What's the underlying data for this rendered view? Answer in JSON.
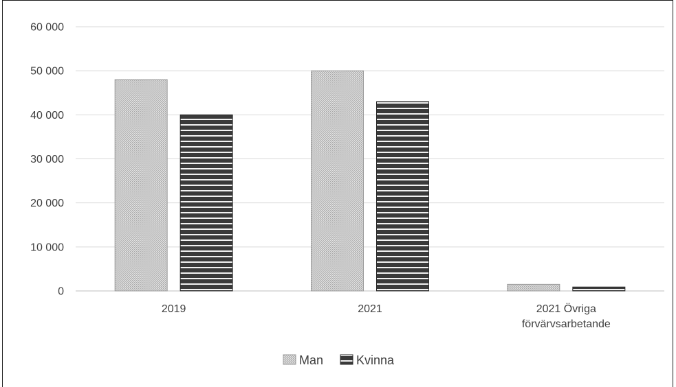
{
  "chart_data": {
    "type": "bar",
    "categories": [
      [
        "2019"
      ],
      [
        "2021"
      ],
      [
        "2021 Övriga",
        "förvärvsarbetande"
      ]
    ],
    "series": [
      {
        "name": "Man",
        "values": [
          48000,
          50000,
          1500
        ],
        "pattern": "dots",
        "color": "#bfbfbf"
      },
      {
        "name": "Kvinna",
        "values": [
          40000,
          43000,
          900
        ],
        "pattern": "stripes",
        "color": "#3a3a3a"
      }
    ],
    "ylim": [
      0,
      60000
    ],
    "yticks": [
      0,
      10000,
      20000,
      30000,
      40000,
      50000,
      60000
    ],
    "ytick_labels": [
      "0",
      "10 000",
      "20 000",
      "30 000",
      "40 000",
      "50 000",
      "60 000"
    ],
    "grid": true,
    "legend_position": "bottom",
    "title": "",
    "xlabel": "",
    "ylabel": ""
  }
}
